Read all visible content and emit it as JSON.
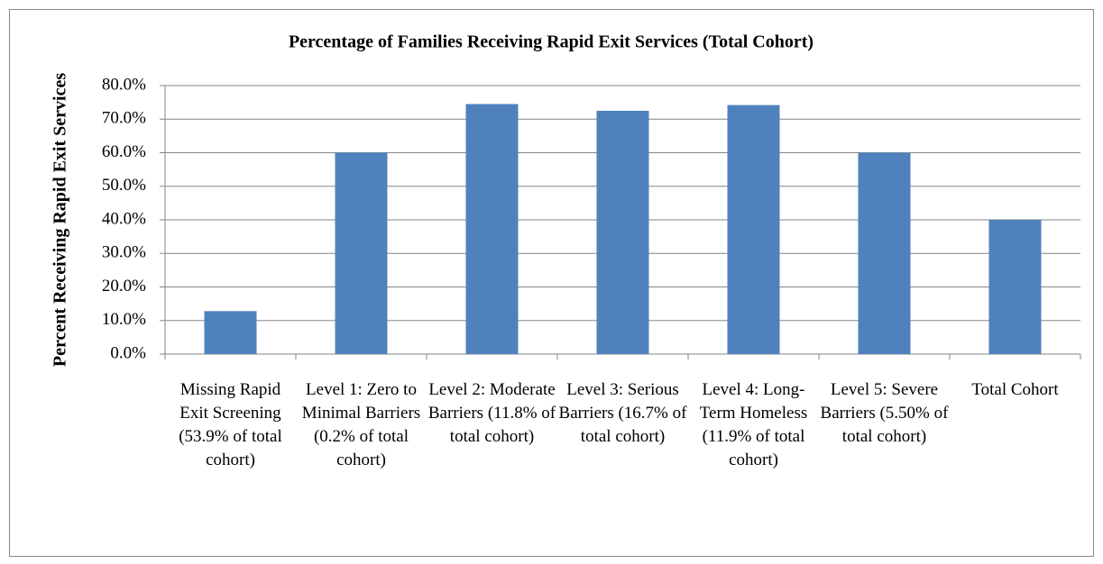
{
  "chart_data": {
    "type": "bar",
    "title": "Percentage of Families Receiving Rapid Exit Services (Total Cohort)",
    "y_label": "Percent Receiving Rapid Exit Services",
    "categories": [
      "Missing Rapid Exit Screening (53.9% of total cohort)",
      "Level 1: Zero to Minimal Barriers (0.2% of total cohort)",
      "Level 2: Moderate Barriers (11.8% of total cohort)",
      "Level 3: Serious Barriers (16.7% of total cohort)",
      "Level 4: Long-Term Homeless (11.9% of total cohort)",
      "Level 5: Severe Barriers (5.50% of total cohort)",
      "Total Cohort"
    ],
    "values": [
      12.8,
      60.0,
      74.5,
      72.5,
      74.2,
      60.0,
      40.0
    ],
    "color": "#4f81bd",
    "ylim": [
      0,
      80
    ],
    "yticks": [
      {
        "value": 0,
        "label": "0.0%"
      },
      {
        "value": 10,
        "label": "10.0%"
      },
      {
        "value": 20,
        "label": "20.0%"
      },
      {
        "value": 30,
        "label": "30.0%"
      },
      {
        "value": 40,
        "label": "40.0%"
      },
      {
        "value": 50,
        "label": "50.0%"
      },
      {
        "value": 60,
        "label": "60.0%"
      },
      {
        "value": 70,
        "label": "70.0%"
      },
      {
        "value": 80,
        "label": "80.0%"
      }
    ],
    "grid": true
  }
}
